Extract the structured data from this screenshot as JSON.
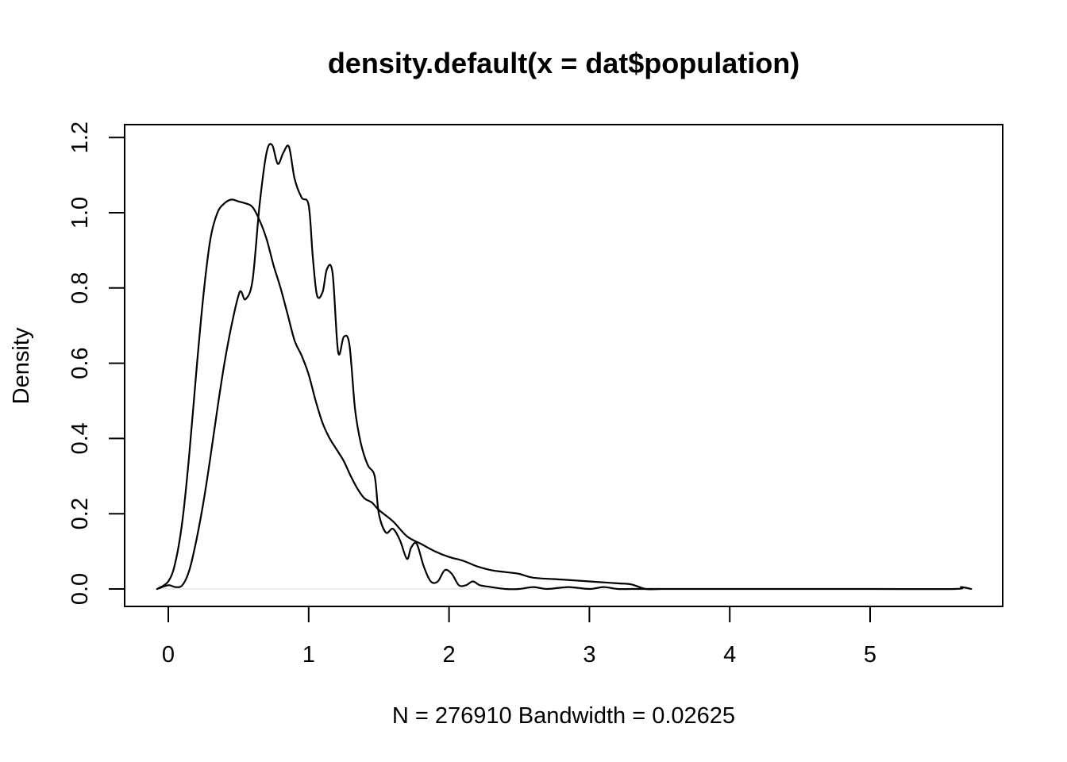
{
  "chart_data": {
    "type": "line",
    "title": "density.default(x = dat$population)",
    "xlabel": "N = 276910   Bandwidth = 0.02625",
    "ylabel": "Density",
    "xlim": [
      -0.1,
      5.75
    ],
    "ylim": [
      0,
      1.2
    ],
    "x_ticks": [
      0,
      1,
      2,
      3,
      4,
      5
    ],
    "x_tick_labels": [
      "0",
      "1",
      "2",
      "3",
      "4",
      "5"
    ],
    "y_ticks": [
      0,
      0.2,
      0.4,
      0.6,
      0.8,
      1.0,
      1.2
    ],
    "y_tick_labels": [
      "0.0",
      "0.2",
      "0.4",
      "0.6",
      "0.8",
      "1.0",
      "1.2"
    ],
    "grid": false,
    "legend": "none",
    "series": [
      {
        "color": "#000000",
        "x": [
          -0.08,
          0.0,
          0.05,
          0.1,
          0.15,
          0.2,
          0.25,
          0.3,
          0.35,
          0.4,
          0.45,
          0.5,
          0.55,
          0.6,
          0.65,
          0.7,
          0.75,
          0.8,
          0.85,
          0.9,
          0.95,
          1.0,
          1.05,
          1.1,
          1.15,
          1.2,
          1.25,
          1.3,
          1.35,
          1.4,
          1.45,
          1.5,
          1.6,
          1.7,
          1.8,
          1.9,
          2.0,
          2.1,
          2.2,
          2.3,
          2.4,
          2.5,
          2.6,
          2.8,
          3.0,
          3.2,
          3.3,
          3.4,
          3.5
        ],
        "y": [
          0.0,
          0.02,
          0.07,
          0.18,
          0.36,
          0.58,
          0.78,
          0.93,
          1.0,
          1.025,
          1.035,
          1.03,
          1.025,
          1.015,
          0.98,
          0.93,
          0.86,
          0.8,
          0.73,
          0.66,
          0.62,
          0.57,
          0.5,
          0.44,
          0.4,
          0.37,
          0.34,
          0.3,
          0.265,
          0.24,
          0.23,
          0.21,
          0.18,
          0.14,
          0.12,
          0.1,
          0.085,
          0.075,
          0.06,
          0.05,
          0.045,
          0.04,
          0.03,
          0.025,
          0.02,
          0.015,
          0.012,
          0.0,
          0.0
        ]
      },
      {
        "color": "#000000",
        "x": [
          -0.08,
          0.0,
          0.05,
          0.1,
          0.15,
          0.2,
          0.25,
          0.3,
          0.35,
          0.4,
          0.45,
          0.5,
          0.52,
          0.55,
          0.6,
          0.65,
          0.7,
          0.74,
          0.78,
          0.82,
          0.86,
          0.9,
          0.95,
          1.0,
          1.03,
          1.06,
          1.1,
          1.13,
          1.17,
          1.21,
          1.25,
          1.29,
          1.33,
          1.37,
          1.42,
          1.47,
          1.5,
          1.55,
          1.6,
          1.65,
          1.7,
          1.73,
          1.77,
          1.82,
          1.87,
          1.92,
          1.97,
          2.02,
          2.07,
          2.12,
          2.17,
          2.22,
          2.3,
          2.4,
          2.5,
          2.6,
          2.7,
          2.85,
          3.0,
          3.1,
          3.2,
          3.3,
          3.4,
          3.5,
          4.0,
          5.0,
          5.6,
          5.65,
          5.72
        ],
        "y": [
          0.0,
          0.01,
          0.005,
          0.01,
          0.05,
          0.13,
          0.23,
          0.35,
          0.48,
          0.6,
          0.7,
          0.78,
          0.79,
          0.77,
          0.82,
          1.02,
          1.16,
          1.18,
          1.13,
          1.16,
          1.175,
          1.09,
          1.04,
          1.02,
          0.88,
          0.78,
          0.79,
          0.85,
          0.84,
          0.63,
          0.67,
          0.65,
          0.48,
          0.39,
          0.33,
          0.3,
          0.2,
          0.15,
          0.16,
          0.13,
          0.08,
          0.11,
          0.12,
          0.06,
          0.02,
          0.02,
          0.05,
          0.04,
          0.01,
          0.01,
          0.02,
          0.01,
          0.005,
          0.0,
          0.0,
          0.005,
          0.0,
          0.005,
          0.0,
          0.005,
          0.0,
          0.0,
          0.0,
          0.0,
          0.0,
          0.0,
          0.0,
          0.005,
          0.0
        ]
      }
    ]
  }
}
